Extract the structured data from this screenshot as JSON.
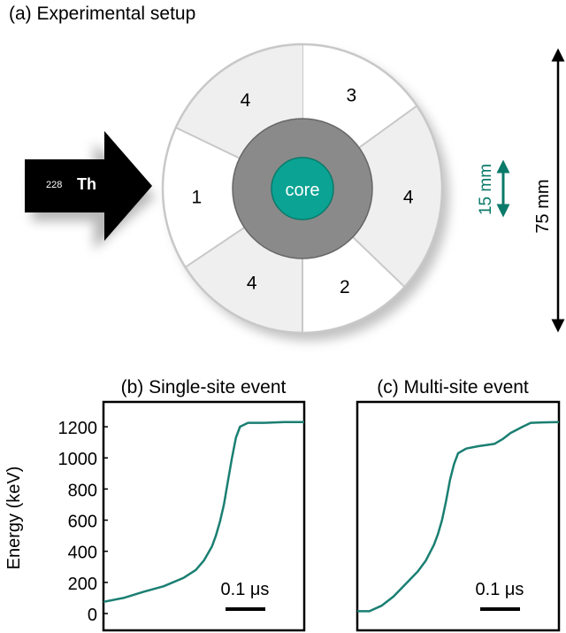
{
  "setup": {
    "title": "(a) Experimental setup",
    "source_label": "Th",
    "source_mass": "228",
    "core_label": "core",
    "segments": [
      {
        "label": "3",
        "shaded": false
      },
      {
        "label": "4",
        "shaded": true
      },
      {
        "label": "2",
        "shaded": false
      },
      {
        "label": "4",
        "shaded": true
      },
      {
        "label": "1",
        "shaded": false
      },
      {
        "label": "4",
        "shaded": true
      }
    ],
    "core_dimension": "15 mm",
    "detector_dimension": "75 mm",
    "colors": {
      "core": "#0aa394",
      "inner": "#8a8a8a",
      "shaded": "#efefef",
      "accent": "#0a7a6a"
    }
  },
  "chart_data": [
    {
      "type": "line",
      "title": "(b) Single-site event",
      "ylabel": "Energy (keV)",
      "yticks": [
        "0",
        "200",
        "400",
        "600",
        "800",
        "1000",
        "1200"
      ],
      "ylim": [
        -40,
        1360
      ],
      "xlim": [
        0,
        0.5
      ],
      "scale_bar": "0.1 μs",
      "color": "#1a7f72",
      "x": [
        0,
        0.05,
        0.1,
        0.15,
        0.2,
        0.23,
        0.25,
        0.27,
        0.28,
        0.29,
        0.3,
        0.31,
        0.32,
        0.33,
        0.34,
        0.36,
        0.4,
        0.45,
        0.5
      ],
      "y": [
        75,
        100,
        140,
        175,
        230,
        280,
        340,
        430,
        500,
        590,
        700,
        850,
        1000,
        1130,
        1200,
        1225,
        1225,
        1230,
        1230
      ]
    },
    {
      "type": "line",
      "title": "(c) Multi-site event",
      "ylim": [
        -40,
        1360
      ],
      "xlim": [
        0,
        0.5
      ],
      "scale_bar": "0.1 μs",
      "color": "#1a7f72",
      "x": [
        0,
        0.03,
        0.06,
        0.09,
        0.12,
        0.15,
        0.17,
        0.19,
        0.2,
        0.21,
        0.22,
        0.23,
        0.24,
        0.25,
        0.27,
        0.3,
        0.34,
        0.36,
        0.38,
        0.41,
        0.43,
        0.46,
        0.5
      ],
      "y": [
        15,
        15,
        50,
        110,
        190,
        270,
        340,
        440,
        510,
        600,
        720,
        860,
        960,
        1030,
        1060,
        1075,
        1090,
        1120,
        1160,
        1200,
        1225,
        1228,
        1230
      ]
    }
  ]
}
